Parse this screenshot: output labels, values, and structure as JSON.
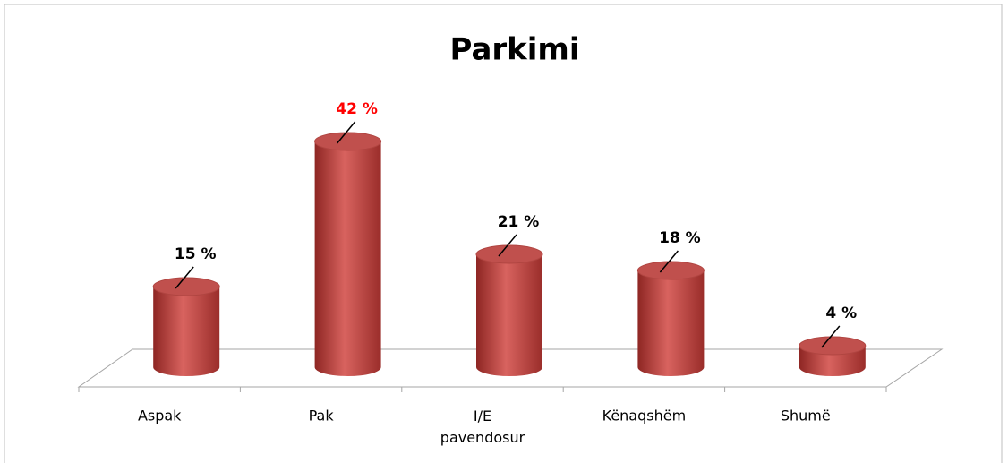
{
  "chart_data": {
    "type": "bar",
    "title": "Parkimi",
    "categories": [
      "Aspak",
      "Pak",
      "I/E pavendosur",
      "Kënaqshëm",
      "Shumë"
    ],
    "values": [
      15,
      42,
      21,
      18,
      4
    ],
    "value_labels": [
      "15 %",
      "42 %",
      "21 %",
      "18 %",
      "4 %"
    ],
    "value_label_colors": [
      "#000000",
      "#ff0000",
      "#000000",
      "#000000",
      "#000000"
    ],
    "color": "#c0504d"
  }
}
